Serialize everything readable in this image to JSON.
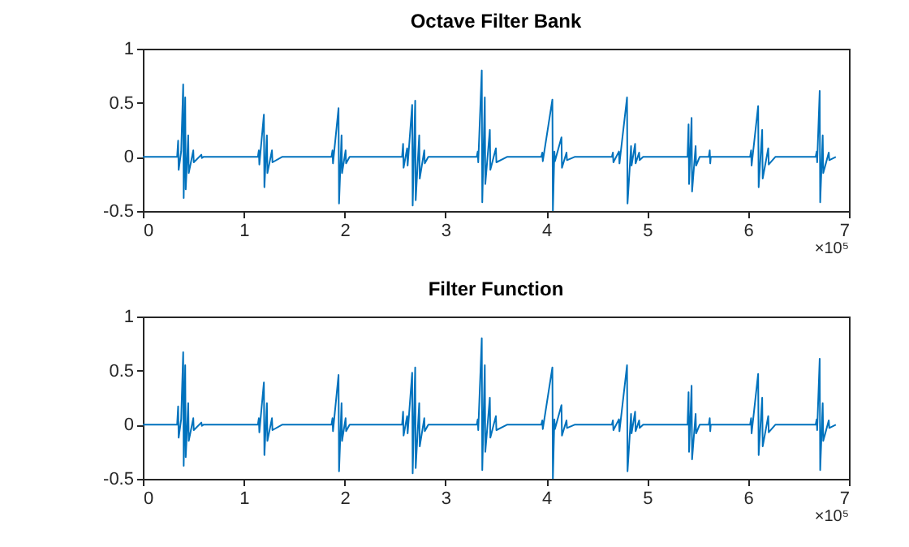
{
  "chart_data": [
    {
      "type": "line",
      "title": "Octave Filter Bank",
      "annotations": [
        "×10⁵"
      ],
      "grid": false,
      "xlim": [
        0,
        7
      ],
      "ylim": [
        -0.5,
        1
      ],
      "xticks": [
        0,
        1,
        2,
        3,
        4,
        5,
        6,
        7
      ],
      "yticks": [
        -0.5,
        0,
        0.5,
        1
      ],
      "x": [
        0,
        0.34,
        0.35,
        0.355,
        0.38,
        0.4,
        0.405,
        0.42,
        0.425,
        0.45,
        0.455,
        0.5,
        0.505,
        0.58,
        0.585,
        0.6,
        1.14,
        1.15,
        1.155,
        1.2,
        1.205,
        1.23,
        1.235,
        1.28,
        1.285,
        1.38,
        1.87,
        1.88,
        1.885,
        1.94,
        1.945,
        1.97,
        1.975,
        2.01,
        2.015,
        2.05,
        2.57,
        2.58,
        2.585,
        2.62,
        2.625,
        2.67,
        2.675,
        2.7,
        2.705,
        2.74,
        2.745,
        2.79,
        2.795,
        2.83,
        3.31,
        3.32,
        3.325,
        3.36,
        3.365,
        3.39,
        3.395,
        3.44,
        3.445,
        3.5,
        3.505,
        3.61,
        3.95,
        3.96,
        3.965,
        4.06,
        4.065,
        4.08,
        4.085,
        4.15,
        4.155,
        4.2,
        4.205,
        4.28,
        4.65,
        4.66,
        4.665,
        4.72,
        4.725,
        4.8,
        4.805,
        4.84,
        4.845,
        4.88,
        4.885,
        4.92,
        4.925,
        4.96,
        5.4,
        5.41,
        5.415,
        5.44,
        5.445,
        5.48,
        5.485,
        5.52,
        5.61,
        5.62,
        5.625,
        5.63,
        6.02,
        6.03,
        6.035,
        6.1,
        6.105,
        6.14,
        6.145,
        6.2,
        6.205,
        6.27,
        6.67,
        6.68,
        6.685,
        6.71,
        6.715,
        6.74,
        6.745,
        6.8,
        6.805,
        6.87
      ],
      "series": [
        {
          "color": "#0072bd",
          "values": [
            0,
            0,
            0.15,
            -0.12,
            0.05,
            0.67,
            -0.38,
            0.55,
            -0.3,
            0.2,
            -0.15,
            0.06,
            -0.05,
            0.02,
            -0.01,
            0,
            0,
            0.06,
            -0.07,
            0.39,
            -0.28,
            0.2,
            -0.15,
            0.06,
            -0.05,
            0,
            0,
            0.06,
            -0.06,
            0.45,
            -0.43,
            0.2,
            -0.15,
            0.06,
            -0.06,
            0,
            0,
            0.12,
            -0.1,
            0.08,
            -0.08,
            0.48,
            -0.45,
            0.52,
            -0.4,
            0.2,
            -0.2,
            0.06,
            -0.06,
            0,
            0,
            0.05,
            -0.05,
            0.8,
            -0.42,
            0.55,
            -0.25,
            0.25,
            -0.12,
            0.08,
            -0.05,
            0,
            0,
            0.04,
            -0.04,
            0.53,
            -0.5,
            0.05,
            -0.04,
            0.18,
            -0.1,
            0.04,
            -0.03,
            0,
            0,
            0.04,
            -0.05,
            0.05,
            -0.06,
            0.55,
            -0.43,
            0.1,
            -0.08,
            0.12,
            -0.06,
            0.04,
            -0.03,
            0,
            0,
            0.3,
            -0.25,
            0.36,
            -0.32,
            0.1,
            -0.08,
            0,
            0,
            0.06,
            -0.06,
            0,
            0,
            0.06,
            -0.08,
            0.47,
            -0.28,
            0.25,
            -0.2,
            0.08,
            -0.07,
            0,
            0,
            0.05,
            -0.05,
            0.61,
            -0.42,
            0.2,
            -0.15,
            0.04,
            -0.03,
            0
          ]
        }
      ]
    },
    {
      "type": "line",
      "title": "Filter Function",
      "annotations": [
        "×10⁵"
      ],
      "grid": false,
      "xlim": [
        0,
        7
      ],
      "ylim": [
        -0.5,
        1
      ],
      "xticks": [
        0,
        1,
        2,
        3,
        4,
        5,
        6,
        7
      ],
      "yticks": [
        -0.5,
        0,
        0.5,
        1
      ],
      "x": [
        0,
        0.34,
        0.35,
        0.355,
        0.38,
        0.4,
        0.405,
        0.42,
        0.425,
        0.45,
        0.455,
        0.5,
        0.505,
        0.58,
        0.585,
        0.6,
        1.14,
        1.15,
        1.155,
        1.2,
        1.205,
        1.23,
        1.235,
        1.28,
        1.285,
        1.38,
        1.87,
        1.88,
        1.885,
        1.94,
        1.945,
        1.97,
        1.975,
        2.01,
        2.015,
        2.05,
        2.57,
        2.58,
        2.585,
        2.62,
        2.625,
        2.67,
        2.675,
        2.7,
        2.705,
        2.74,
        2.745,
        2.79,
        2.795,
        2.83,
        3.31,
        3.32,
        3.325,
        3.36,
        3.365,
        3.39,
        3.395,
        3.44,
        3.445,
        3.5,
        3.505,
        3.61,
        3.95,
        3.96,
        3.965,
        4.06,
        4.065,
        4.08,
        4.085,
        4.15,
        4.155,
        4.2,
        4.205,
        4.28,
        4.65,
        4.66,
        4.665,
        4.72,
        4.725,
        4.8,
        4.805,
        4.84,
        4.845,
        4.88,
        4.885,
        4.92,
        4.925,
        4.96,
        5.4,
        5.41,
        5.415,
        5.44,
        5.445,
        5.48,
        5.485,
        5.52,
        5.61,
        5.62,
        5.625,
        5.63,
        6.02,
        6.03,
        6.035,
        6.1,
        6.105,
        6.14,
        6.145,
        6.2,
        6.205,
        6.27,
        6.67,
        6.68,
        6.685,
        6.71,
        6.715,
        6.74,
        6.745,
        6.8,
        6.805,
        6.87
      ],
      "series": [
        {
          "color": "#0072bd",
          "values": [
            0,
            0,
            0.17,
            -0.12,
            0.05,
            0.67,
            -0.38,
            0.55,
            -0.3,
            0.2,
            -0.15,
            0.06,
            -0.05,
            0.02,
            -0.01,
            0,
            0,
            0.06,
            -0.07,
            0.39,
            -0.28,
            0.2,
            -0.15,
            0.06,
            -0.05,
            0,
            0,
            0.06,
            -0.06,
            0.46,
            -0.43,
            0.2,
            -0.15,
            0.06,
            -0.06,
            0,
            0,
            0.12,
            -0.1,
            0.08,
            -0.08,
            0.48,
            -0.45,
            0.53,
            -0.4,
            0.2,
            -0.2,
            0.06,
            -0.06,
            0,
            0,
            0.05,
            -0.05,
            0.8,
            -0.42,
            0.55,
            -0.25,
            0.25,
            -0.12,
            0.08,
            -0.05,
            0,
            0,
            0.04,
            -0.04,
            0.53,
            -0.5,
            0.05,
            -0.04,
            0.18,
            -0.1,
            0.04,
            -0.03,
            0,
            0,
            0.04,
            -0.05,
            0.05,
            -0.06,
            0.55,
            -0.43,
            0.1,
            -0.08,
            0.12,
            -0.06,
            0.04,
            -0.03,
            0,
            0,
            0.3,
            -0.25,
            0.36,
            -0.32,
            0.1,
            -0.08,
            0,
            0,
            0.06,
            -0.06,
            0,
            0,
            0.06,
            -0.08,
            0.47,
            -0.28,
            0.25,
            -0.2,
            0.08,
            -0.07,
            0,
            0,
            0.05,
            -0.05,
            0.61,
            -0.42,
            0.2,
            -0.15,
            0.04,
            -0.03,
            0
          ]
        }
      ]
    }
  ]
}
